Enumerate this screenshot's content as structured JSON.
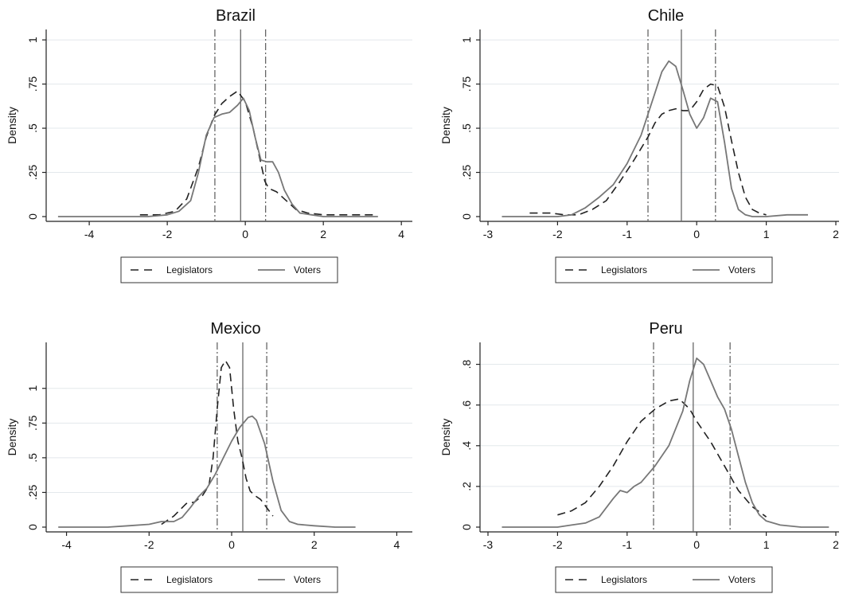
{
  "chart_data": [
    {
      "type": "line",
      "title": "Brazil",
      "ylabel": "Density",
      "xlabel": "",
      "xlim": [
        -4.9,
        4.2
      ],
      "ylim": [
        0,
        1.05
      ],
      "xticks": [
        -4,
        -2,
        0,
        2,
        4
      ],
      "xtick_labels": [
        "-4",
        "-2",
        "0",
        "2",
        "4"
      ],
      "yticks": [
        0,
        0.25,
        0.5,
        0.75,
        1
      ],
      "ytick_labels": [
        "0",
        ".25",
        ".5",
        ".75",
        "1"
      ],
      "grid": true,
      "legend": [
        "Legislators",
        "Voters"
      ],
      "legend_position": "bottom",
      "reference_lines": {
        "legislators": [
          -0.78,
          0.52
        ],
        "voters": [
          -0.12
        ]
      },
      "series": [
        {
          "name": "Legislators",
          "style": "dashed",
          "x": [
            -2.7,
            -2.2,
            -1.8,
            -1.5,
            -1.2,
            -1.0,
            -0.8,
            -0.6,
            -0.4,
            -0.2,
            0.0,
            0.2,
            0.4,
            0.5,
            0.6,
            0.8,
            1.0,
            1.3,
            1.6,
            2.0,
            2.5,
            3.0,
            3.3
          ],
          "y": [
            0.01,
            0.01,
            0.03,
            0.1,
            0.28,
            0.45,
            0.57,
            0.64,
            0.68,
            0.71,
            0.65,
            0.5,
            0.3,
            0.2,
            0.16,
            0.14,
            0.1,
            0.04,
            0.02,
            0.01,
            0.01,
            0.01,
            0.01
          ]
        },
        {
          "name": "Voters",
          "style": "solid",
          "x": [
            -4.8,
            -4.5,
            -3.5,
            -2.5,
            -2.0,
            -1.7,
            -1.4,
            -1.2,
            -1.0,
            -0.8,
            -0.6,
            -0.4,
            -0.2,
            -0.05,
            0.1,
            0.25,
            0.4,
            0.55,
            0.7,
            0.85,
            1.0,
            1.2,
            1.4,
            1.7,
            2.0,
            2.5,
            3.0,
            3.4
          ],
          "y": [
            0.0,
            0.0,
            0.0,
            0.0,
            0.01,
            0.03,
            0.09,
            0.25,
            0.46,
            0.56,
            0.58,
            0.59,
            0.63,
            0.67,
            0.6,
            0.45,
            0.32,
            0.31,
            0.31,
            0.25,
            0.15,
            0.07,
            0.02,
            0.01,
            0.0,
            0.0,
            0.0,
            0.0
          ]
        }
      ]
    },
    {
      "type": "line",
      "title": "Chile",
      "ylabel": "Density",
      "xlabel": "",
      "xlim": [
        -3.0,
        2.0
      ],
      "ylim": [
        0,
        1.05
      ],
      "xticks": [
        -3,
        -2,
        -1,
        0,
        1,
        2
      ],
      "xtick_labels": [
        "-3",
        "-2",
        "-1",
        "0",
        "1",
        "2"
      ],
      "yticks": [
        0,
        0.25,
        0.5,
        0.75,
        1
      ],
      "ytick_labels": [
        "0",
        ".25",
        ".5",
        ".75",
        "1"
      ],
      "grid": true,
      "legend": [
        "Legislators",
        "Voters"
      ],
      "legend_position": "bottom",
      "reference_lines": {
        "legislators": [
          -0.7,
          0.27
        ],
        "voters": [
          -0.22
        ]
      },
      "series": [
        {
          "name": "Legislators",
          "style": "dashed",
          "x": [
            -2.4,
            -2.1,
            -1.9,
            -1.7,
            -1.5,
            -1.3,
            -1.1,
            -0.9,
            -0.7,
            -0.6,
            -0.5,
            -0.4,
            -0.3,
            -0.2,
            -0.1,
            0.0,
            0.1,
            0.2,
            0.3,
            0.4,
            0.5,
            0.6,
            0.7,
            0.8,
            0.9,
            1.0
          ],
          "y": [
            0.02,
            0.02,
            0.01,
            0.01,
            0.04,
            0.09,
            0.2,
            0.32,
            0.45,
            0.53,
            0.58,
            0.6,
            0.61,
            0.6,
            0.6,
            0.65,
            0.72,
            0.75,
            0.74,
            0.62,
            0.43,
            0.25,
            0.11,
            0.04,
            0.02,
            0.01
          ]
        },
        {
          "name": "Voters",
          "style": "solid",
          "x": [
            -2.8,
            -2.5,
            -2.0,
            -1.8,
            -1.6,
            -1.4,
            -1.2,
            -1.0,
            -0.8,
            -0.6,
            -0.5,
            -0.4,
            -0.3,
            -0.2,
            -0.1,
            0.0,
            0.1,
            0.2,
            0.3,
            0.4,
            0.5,
            0.6,
            0.7,
            0.8,
            1.0,
            1.3,
            1.6
          ],
          "y": [
            0.0,
            0.0,
            0.0,
            0.01,
            0.05,
            0.11,
            0.18,
            0.3,
            0.46,
            0.7,
            0.82,
            0.88,
            0.85,
            0.72,
            0.58,
            0.5,
            0.56,
            0.67,
            0.65,
            0.42,
            0.16,
            0.04,
            0.01,
            0.0,
            0.0,
            0.01,
            0.01
          ]
        }
      ]
    },
    {
      "type": "line",
      "title": "Mexico",
      "ylabel": "Density",
      "xlabel": "",
      "xlim": [
        -4.3,
        4.3
      ],
      "ylim": [
        0,
        1.32
      ],
      "xticks": [
        -4,
        -2,
        0,
        2,
        4
      ],
      "xtick_labels": [
        "-4",
        "-2",
        "0",
        "2",
        "4"
      ],
      "yticks": [
        0,
        0.25,
        0.5,
        0.75,
        1
      ],
      "ytick_labels": [
        "0",
        ".25",
        ".5",
        ".75",
        "1"
      ],
      "grid": true,
      "legend": [
        "Legislators",
        "Voters"
      ],
      "legend_position": "bottom",
      "reference_lines": {
        "legislators": [
          -0.35,
          0.85
        ],
        "voters": [
          0.27
        ]
      },
      "series": [
        {
          "name": "Legislators",
          "style": "dashed",
          "x": [
            -1.7,
            -1.4,
            -1.1,
            -0.9,
            -0.7,
            -0.55,
            -0.45,
            -0.35,
            -0.25,
            -0.15,
            -0.05,
            0.05,
            0.15,
            0.25,
            0.35,
            0.45,
            0.55,
            0.7,
            0.9,
            1.0
          ],
          "y": [
            0.02,
            0.08,
            0.17,
            0.18,
            0.23,
            0.3,
            0.5,
            0.85,
            1.15,
            1.2,
            1.15,
            0.85,
            0.62,
            0.5,
            0.35,
            0.26,
            0.23,
            0.2,
            0.12,
            0.08
          ]
        },
        {
          "name": "Voters",
          "style": "solid",
          "x": [
            -4.2,
            -3.5,
            -3.0,
            -2.5,
            -2.0,
            -1.7,
            -1.4,
            -1.2,
            -1.0,
            -0.8,
            -0.6,
            -0.4,
            -0.2,
            0.0,
            0.2,
            0.4,
            0.5,
            0.6,
            0.8,
            1.0,
            1.2,
            1.4,
            1.6,
            2.0,
            2.5,
            3.0
          ],
          "y": [
            0.0,
            0.0,
            0.0,
            0.01,
            0.02,
            0.04,
            0.04,
            0.07,
            0.14,
            0.22,
            0.28,
            0.38,
            0.5,
            0.62,
            0.72,
            0.79,
            0.8,
            0.77,
            0.6,
            0.33,
            0.12,
            0.04,
            0.02,
            0.01,
            0.0,
            0.0
          ]
        }
      ]
    },
    {
      "type": "line",
      "title": "Peru",
      "ylabel": "Density",
      "xlabel": "",
      "xlim": [
        -3.0,
        2.0
      ],
      "ylim": [
        0,
        0.9
      ],
      "xticks": [
        -3,
        -2,
        -1,
        0,
        1,
        2
      ],
      "xtick_labels": [
        "-3",
        "-2",
        "-1",
        "0",
        "1",
        "2"
      ],
      "yticks": [
        0,
        0.2,
        0.4,
        0.6,
        0.8
      ],
      "ytick_labels": [
        "0",
        ".2",
        ".4",
        ".6",
        ".8"
      ],
      "grid": true,
      "legend": [
        "Legislators",
        "Voters"
      ],
      "legend_position": "bottom",
      "reference_lines": {
        "legislators": [
          -0.62,
          0.48
        ],
        "voters": [
          -0.05
        ]
      },
      "series": [
        {
          "name": "Legislators",
          "style": "dashed",
          "x": [
            -2.0,
            -1.8,
            -1.6,
            -1.4,
            -1.2,
            -1.0,
            -0.8,
            -0.6,
            -0.4,
            -0.25,
            -0.1,
            0.0,
            0.2,
            0.4,
            0.6,
            0.8,
            1.0
          ],
          "y": [
            0.06,
            0.08,
            0.12,
            0.2,
            0.3,
            0.42,
            0.52,
            0.58,
            0.62,
            0.63,
            0.58,
            0.52,
            0.42,
            0.3,
            0.18,
            0.1,
            0.05
          ]
        },
        {
          "name": "Voters",
          "style": "solid",
          "x": [
            -2.8,
            -2.5,
            -2.0,
            -1.8,
            -1.6,
            -1.4,
            -1.2,
            -1.1,
            -1.0,
            -0.9,
            -0.8,
            -0.6,
            -0.4,
            -0.2,
            -0.1,
            0.0,
            0.1,
            0.2,
            0.3,
            0.4,
            0.5,
            0.6,
            0.7,
            0.8,
            0.9,
            1.0,
            1.2,
            1.5,
            1.9
          ],
          "y": [
            0.0,
            0.0,
            0.0,
            0.01,
            0.02,
            0.05,
            0.14,
            0.18,
            0.17,
            0.2,
            0.22,
            0.3,
            0.4,
            0.57,
            0.72,
            0.83,
            0.8,
            0.72,
            0.64,
            0.58,
            0.48,
            0.35,
            0.22,
            0.12,
            0.06,
            0.03,
            0.01,
            0.0,
            0.0
          ]
        }
      ]
    }
  ]
}
